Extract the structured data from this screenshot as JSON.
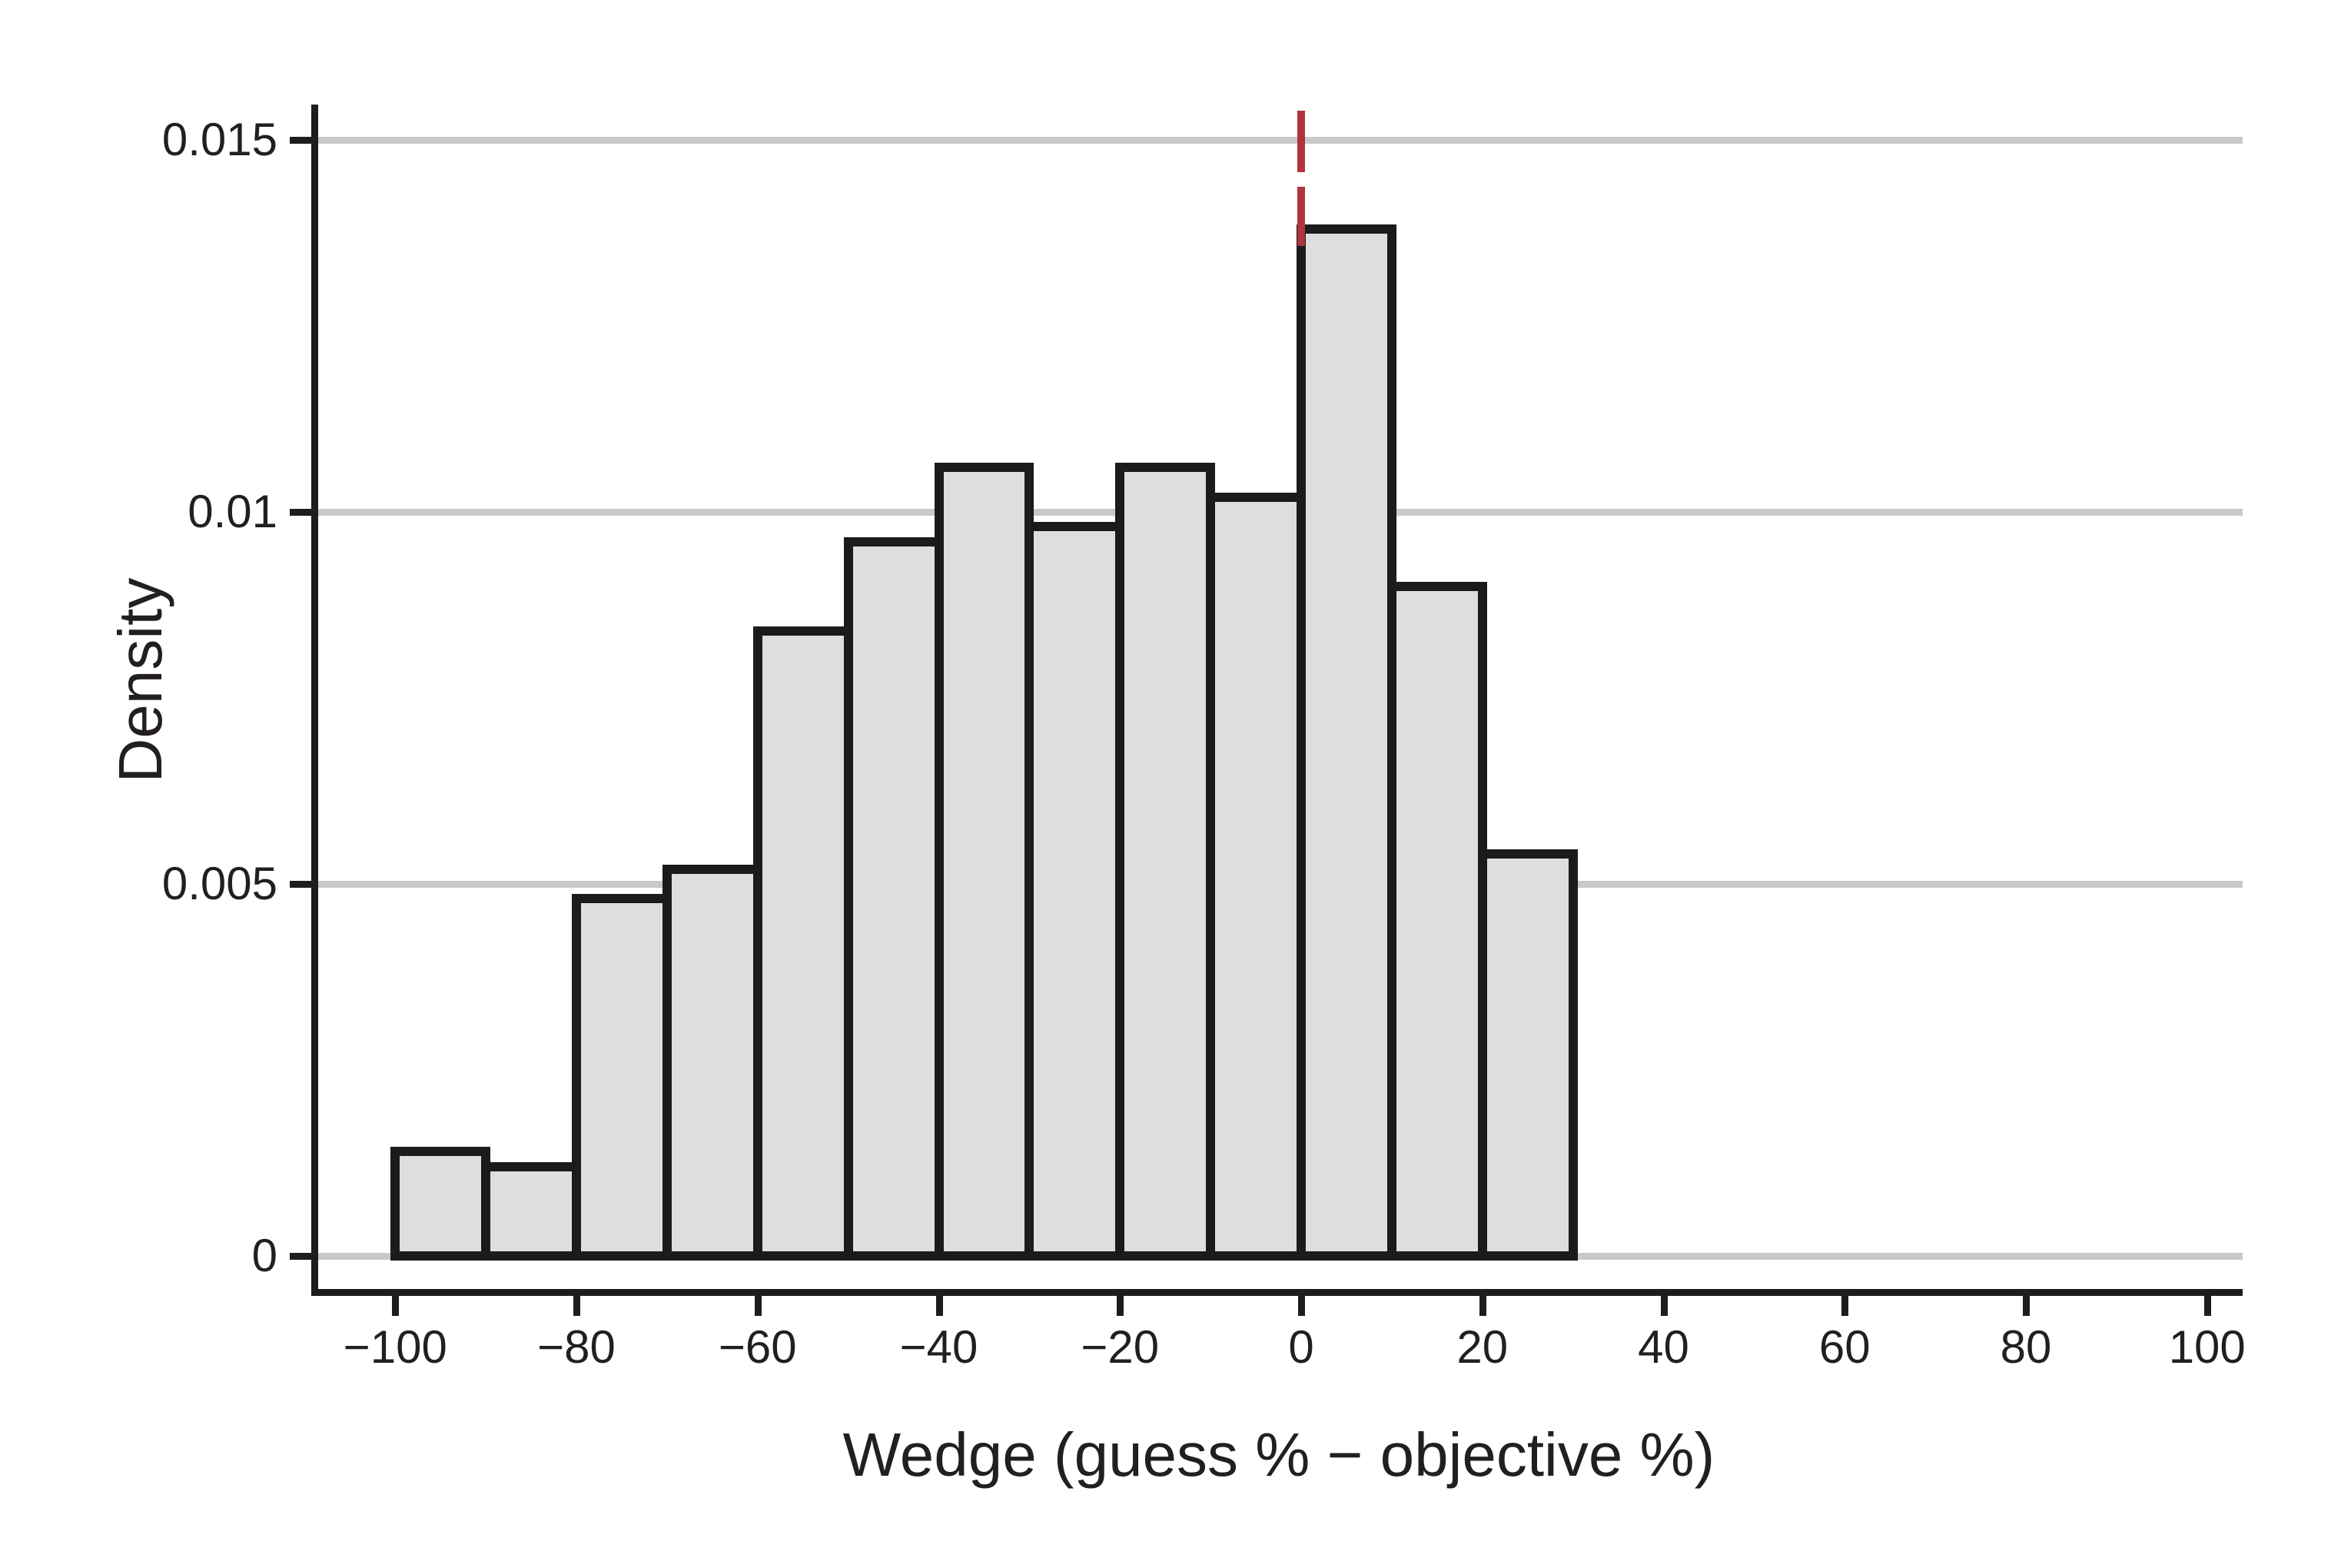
{
  "chart_data": {
    "type": "bar",
    "subtype": "histogram",
    "title": "",
    "xlabel": "Wedge (guess % − objective %)",
    "ylabel": "Density",
    "legend": "none",
    "grid": "horizontal-only",
    "xlim": [
      -100,
      100
    ],
    "ylim": [
      0,
      0.0155
    ],
    "bin_width": 10,
    "bins": [
      {
        "x0": -100,
        "x1": -90,
        "density": 0.0014
      },
      {
        "x0": -90,
        "x1": -80,
        "density": 0.0012
      },
      {
        "x0": -80,
        "x1": -70,
        "density": 0.0048
      },
      {
        "x0": -70,
        "x1": -60,
        "density": 0.0052
      },
      {
        "x0": -60,
        "x1": -50,
        "density": 0.0084
      },
      {
        "x0": -50,
        "x1": -40,
        "density": 0.0096
      },
      {
        "x0": -40,
        "x1": -30,
        "density": 0.0106
      },
      {
        "x0": -30,
        "x1": -20,
        "density": 0.0098
      },
      {
        "x0": -20,
        "x1": -10,
        "density": 0.0106
      },
      {
        "x0": -10,
        "x1": 0,
        "density": 0.0102
      },
      {
        "x0": 0,
        "x1": 10,
        "density": 0.0138
      },
      {
        "x0": 10,
        "x1": 20,
        "density": 0.009
      },
      {
        "x0": 20,
        "x1": 30,
        "density": 0.0054
      }
    ],
    "x_tick_values": [
      -100,
      -80,
      -60,
      -40,
      -20,
      0,
      20,
      40,
      60,
      80,
      100
    ],
    "x_tick_labels": [
      "−100",
      "−80",
      "−60",
      "−40",
      "−20",
      "0",
      "20",
      "40",
      "60",
      "80",
      "100"
    ],
    "y_tick_values": [
      0,
      0.005,
      0.01,
      0.015
    ],
    "y_tick_labels": [
      "0",
      "0.005",
      "0.01",
      "0.015"
    ],
    "reference_line": {
      "x": 0,
      "style": "dashed",
      "label": ""
    },
    "colors": {
      "bar_fill": "#dedede",
      "bar_border": "#1b1b1b",
      "gridline": "#c9c9c9",
      "axis": "#1d1d1d",
      "text": "#231f20",
      "reference": "#b0353a",
      "background": "#ffffff"
    }
  }
}
